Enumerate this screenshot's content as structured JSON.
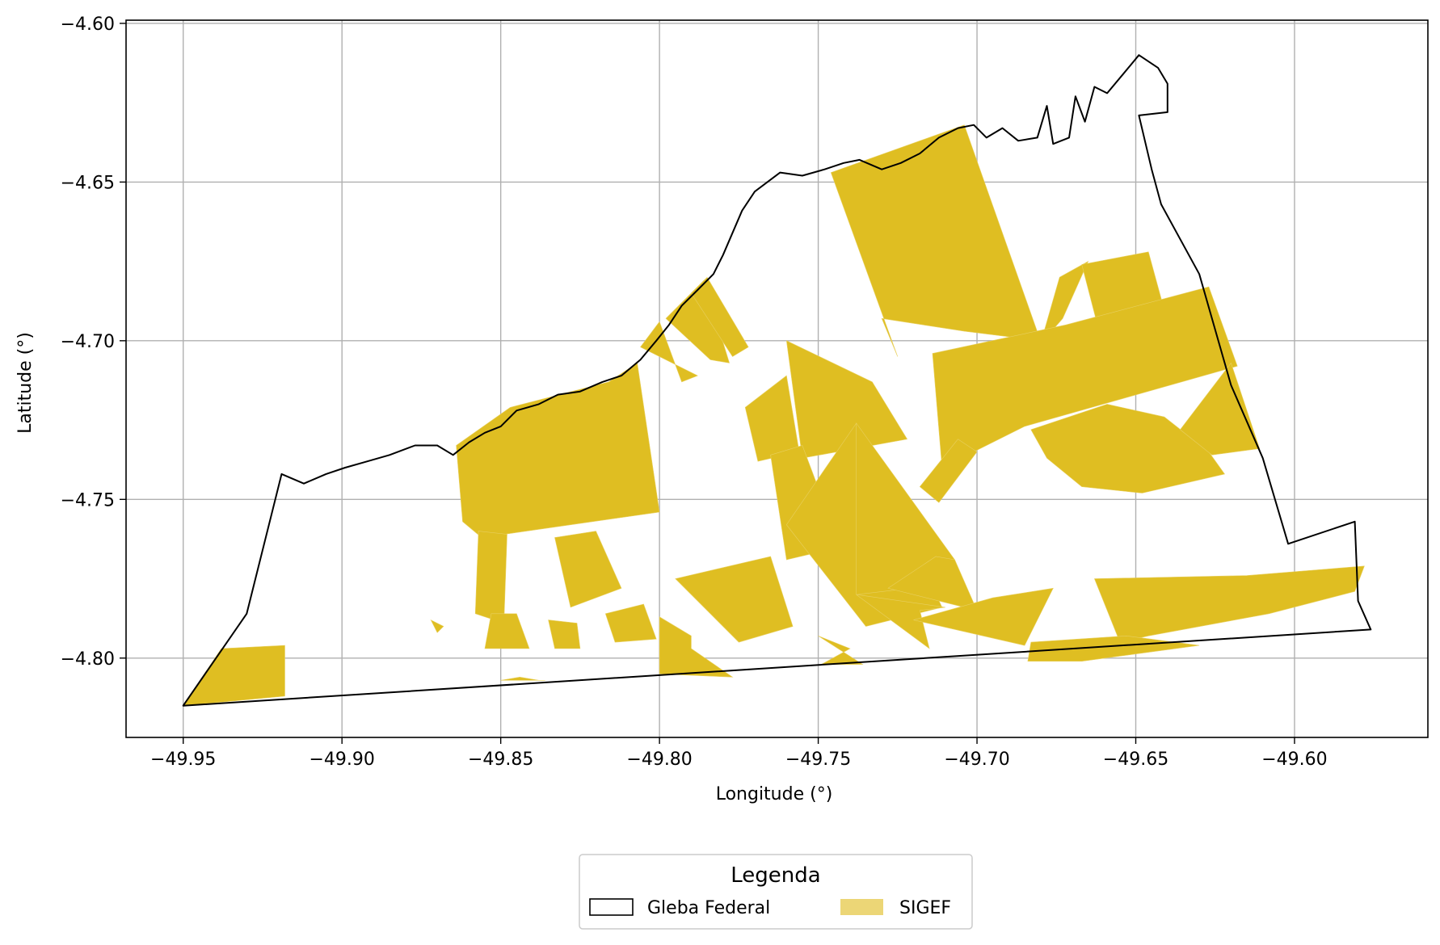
{
  "chart_data": {
    "type": "map",
    "xlabel": "Longitude (°)",
    "ylabel": "Latitude (°)",
    "xlim": [
      -49.968,
      -49.558
    ],
    "ylim": [
      -4.825,
      -4.599
    ],
    "grid": true,
    "xticks": [
      -49.95,
      -49.9,
      -49.85,
      -49.8,
      -49.75,
      -49.7,
      -49.65,
      -49.6
    ],
    "yticks": [
      -4.6,
      -4.65,
      -4.7,
      -4.75,
      -4.8
    ],
    "xtick_labels": [
      "−49.95",
      "−49.90",
      "−49.85",
      "−49.80",
      "−49.75",
      "−49.70",
      "−49.65",
      "−49.60"
    ],
    "ytick_labels": [
      "−4.60",
      "−4.65",
      "−4.70",
      "−4.75",
      "−4.80"
    ],
    "legend": {
      "title": "Legenda",
      "placement": "bottom-center, below axes",
      "entries": [
        {
          "label": "Gleba Federal",
          "style": "outline",
          "color": "#000000"
        },
        {
          "label": "SIGEF",
          "style": "fill",
          "color": "#ecd676"
        }
      ]
    },
    "colors": {
      "sigef_fill": "#dfbe22",
      "boundary": "#000000",
      "grid": "#b0b0b0"
    },
    "layers": {
      "gleba_federal": [
        [
          -49.95,
          -4.815
        ],
        [
          -49.93,
          -4.786
        ],
        [
          -49.919,
          -4.742
        ],
        [
          -49.912,
          -4.745
        ],
        [
          -49.905,
          -4.742
        ],
        [
          -49.899,
          -4.74
        ],
        [
          -49.892,
          -4.738
        ],
        [
          -49.885,
          -4.736
        ],
        [
          -49.877,
          -4.733
        ],
        [
          -49.87,
          -4.733
        ],
        [
          -49.865,
          -4.736
        ],
        [
          -49.86,
          -4.732
        ],
        [
          -49.855,
          -4.729
        ],
        [
          -49.85,
          -4.727
        ],
        [
          -49.845,
          -4.722
        ],
        [
          -49.838,
          -4.72
        ],
        [
          -49.832,
          -4.717
        ],
        [
          -49.825,
          -4.716
        ],
        [
          -49.818,
          -4.713
        ],
        [
          -49.812,
          -4.711
        ],
        [
          -49.806,
          -4.706
        ],
        [
          -49.801,
          -4.7
        ],
        [
          -49.797,
          -4.695
        ],
        [
          -49.793,
          -4.689
        ],
        [
          -49.788,
          -4.684
        ],
        [
          -49.783,
          -4.679
        ],
        [
          -49.78,
          -4.673
        ],
        [
          -49.777,
          -4.666
        ],
        [
          -49.774,
          -4.659
        ],
        [
          -49.77,
          -4.653
        ],
        [
          -49.762,
          -4.647
        ],
        [
          -49.755,
          -4.648
        ],
        [
          -49.748,
          -4.646
        ],
        [
          -49.742,
          -4.644
        ],
        [
          -49.737,
          -4.643
        ],
        [
          -49.73,
          -4.646
        ],
        [
          -49.724,
          -4.644
        ],
        [
          -49.718,
          -4.641
        ],
        [
          -49.712,
          -4.636
        ],
        [
          -49.706,
          -4.633
        ],
        [
          -49.701,
          -4.632
        ],
        [
          -49.697,
          -4.636
        ],
        [
          -49.692,
          -4.633
        ],
        [
          -49.687,
          -4.637
        ],
        [
          -49.681,
          -4.636
        ],
        [
          -49.678,
          -4.626
        ],
        [
          -49.676,
          -4.638
        ],
        [
          -49.671,
          -4.636
        ],
        [
          -49.669,
          -4.623
        ],
        [
          -49.666,
          -4.631
        ],
        [
          -49.663,
          -4.62
        ],
        [
          -49.659,
          -4.622
        ],
        [
          -49.654,
          -4.616
        ],
        [
          -49.649,
          -4.61
        ],
        [
          -49.643,
          -4.614
        ],
        [
          -49.64,
          -4.619
        ],
        [
          -49.64,
          -4.628
        ],
        [
          -49.649,
          -4.629
        ],
        [
          -49.645,
          -4.646
        ],
        [
          -49.642,
          -4.657
        ],
        [
          -49.63,
          -4.679
        ],
        [
          -49.62,
          -4.714
        ],
        [
          -49.61,
          -4.737
        ],
        [
          -49.602,
          -4.764
        ],
        [
          -49.581,
          -4.757
        ],
        [
          -49.58,
          -4.782
        ],
        [
          -49.576,
          -4.791
        ],
        [
          -49.95,
          -4.815
        ]
      ],
      "sigef_parcels": [
        [
          [
            -49.95,
            -4.815
          ],
          [
            -49.938,
            -4.797
          ],
          [
            -49.918,
            -4.796
          ],
          [
            -49.918,
            -4.812
          ]
        ],
        [
          [
            -49.864,
            -4.733
          ],
          [
            -49.847,
            -4.721
          ],
          [
            -49.816,
            -4.713
          ],
          [
            -49.807,
            -4.707
          ],
          [
            -49.8,
            -4.754
          ],
          [
            -49.856,
            -4.762
          ],
          [
            -49.862,
            -4.757
          ]
        ],
        [
          [
            -49.857,
            -4.76
          ],
          [
            -49.848,
            -4.761
          ],
          [
            -49.849,
            -4.789
          ],
          [
            -49.858,
            -4.786
          ]
        ],
        [
          [
            -49.806,
            -4.702
          ],
          [
            -49.8,
            -4.694
          ],
          [
            -49.793,
            -4.713
          ],
          [
            -49.788,
            -4.711
          ]
        ],
        [
          [
            -49.798,
            -4.693
          ],
          [
            -49.786,
            -4.681
          ],
          [
            -49.778,
            -4.707
          ],
          [
            -49.784,
            -4.706
          ]
        ],
        [
          [
            -49.79,
            -4.685
          ],
          [
            -49.785,
            -4.68
          ],
          [
            -49.772,
            -4.702
          ],
          [
            -49.777,
            -4.705
          ]
        ],
        [
          [
            -49.833,
            -4.762
          ],
          [
            -49.82,
            -4.76
          ],
          [
            -49.812,
            -4.778
          ],
          [
            -49.828,
            -4.784
          ]
        ],
        [
          [
            -49.853,
            -4.786
          ],
          [
            -49.845,
            -4.786
          ],
          [
            -49.841,
            -4.797
          ],
          [
            -49.855,
            -4.797
          ]
        ],
        [
          [
            -49.817,
            -4.786
          ],
          [
            -49.805,
            -4.783
          ],
          [
            -49.801,
            -4.794
          ],
          [
            -49.814,
            -4.795
          ]
        ],
        [
          [
            -49.835,
            -4.788
          ],
          [
            -49.826,
            -4.789
          ],
          [
            -49.825,
            -4.797
          ],
          [
            -49.833,
            -4.797
          ]
        ],
        [
          [
            -49.872,
            -4.788
          ],
          [
            -49.868,
            -4.79
          ],
          [
            -49.87,
            -4.792
          ]
        ],
        [
          [
            -49.844,
            -4.806
          ],
          [
            -49.838,
            -4.807
          ],
          [
            -49.836,
            -4.807
          ],
          [
            -49.85,
            -4.807
          ]
        ],
        [
          [
            -49.79,
            -4.793
          ],
          [
            -49.8,
            -4.787
          ],
          [
            -49.8,
            -4.805
          ],
          [
            -49.777,
            -4.806
          ],
          [
            -49.79,
            -4.797
          ]
        ],
        [
          [
            -49.795,
            -4.775
          ],
          [
            -49.765,
            -4.768
          ],
          [
            -49.758,
            -4.79
          ],
          [
            -49.775,
            -4.795
          ]
        ],
        [
          [
            -49.773,
            -4.721
          ],
          [
            -49.76,
            -4.711
          ],
          [
            -49.756,
            -4.735
          ],
          [
            -49.769,
            -4.738
          ]
        ],
        [
          [
            -49.76,
            -4.7
          ],
          [
            -49.733,
            -4.713
          ],
          [
            -49.722,
            -4.731
          ],
          [
            -49.755,
            -4.737
          ]
        ],
        [
          [
            -49.765,
            -4.736
          ],
          [
            -49.755,
            -4.733
          ],
          [
            -49.743,
            -4.765
          ],
          [
            -49.76,
            -4.769
          ]
        ],
        [
          [
            -49.738,
            -4.726
          ],
          [
            -49.76,
            -4.758
          ],
          [
            -49.735,
            -4.79
          ],
          [
            -49.711,
            -4.784
          ]
        ],
        [
          [
            -49.738,
            -4.726
          ],
          [
            -49.707,
            -4.769
          ],
          [
            -49.721,
            -4.778
          ],
          [
            -49.738,
            -4.78
          ]
        ],
        [
          [
            -49.738,
            -4.78
          ],
          [
            -49.71,
            -4.784
          ],
          [
            -49.718,
            -4.785
          ],
          [
            -49.715,
            -4.797
          ]
        ],
        [
          [
            -49.75,
            -4.793
          ],
          [
            -49.74,
            -4.797
          ],
          [
            -49.749,
            -4.802
          ],
          [
            -49.736,
            -4.802
          ]
        ],
        [
          [
            -49.707,
            -4.769
          ],
          [
            -49.7,
            -4.785
          ],
          [
            -49.728,
            -4.778
          ],
          [
            -49.713,
            -4.768
          ]
        ],
        [
          [
            -49.746,
            -4.647
          ],
          [
            -49.704,
            -4.632
          ],
          [
            -49.68,
            -4.7
          ],
          [
            -49.704,
            -4.697
          ],
          [
            -49.73,
            -4.693
          ],
          [
            -49.725,
            -4.705
          ]
        ],
        [
          [
            -49.674,
            -4.68
          ],
          [
            -49.665,
            -4.675
          ],
          [
            -49.673,
            -4.693
          ],
          [
            -49.68,
            -4.701
          ]
        ],
        [
          [
            -49.667,
            -4.676
          ],
          [
            -49.646,
            -4.672
          ],
          [
            -49.64,
            -4.694
          ],
          [
            -49.66,
            -4.703
          ]
        ],
        [
          [
            -49.714,
            -4.704
          ],
          [
            -49.672,
            -4.695
          ],
          [
            -49.627,
            -4.683
          ],
          [
            -49.618,
            -4.708
          ],
          [
            -49.685,
            -4.727
          ],
          [
            -49.711,
            -4.74
          ]
        ],
        [
          [
            -49.683,
            -4.728
          ],
          [
            -49.659,
            -4.72
          ],
          [
            -49.641,
            -4.724
          ],
          [
            -49.627,
            -4.735
          ],
          [
            -49.622,
            -4.742
          ],
          [
            -49.648,
            -4.748
          ],
          [
            -49.667,
            -4.746
          ],
          [
            -49.678,
            -4.737
          ]
        ],
        [
          [
            -49.62,
            -4.707
          ],
          [
            -49.611,
            -4.734
          ],
          [
            -49.626,
            -4.736
          ],
          [
            -49.636,
            -4.728
          ]
        ],
        [
          [
            -49.663,
            -4.775
          ],
          [
            -49.615,
            -4.774
          ],
          [
            -49.578,
            -4.771
          ],
          [
            -49.581,
            -4.779
          ],
          [
            -49.608,
            -4.786
          ],
          [
            -49.646,
            -4.793
          ],
          [
            -49.655,
            -4.795
          ]
        ],
        [
          [
            -49.683,
            -4.795
          ],
          [
            -49.653,
            -4.793
          ],
          [
            -49.63,
            -4.796
          ],
          [
            -49.667,
            -4.801
          ],
          [
            -49.684,
            -4.801
          ]
        ],
        [
          [
            -49.72,
            -4.788
          ],
          [
            -49.695,
            -4.781
          ],
          [
            -49.676,
            -4.778
          ],
          [
            -49.685,
            -4.796
          ]
        ],
        [
          [
            -49.706,
            -4.731
          ],
          [
            -49.7,
            -4.735
          ],
          [
            -49.712,
            -4.751
          ],
          [
            -49.718,
            -4.746
          ]
        ]
      ]
    }
  }
}
